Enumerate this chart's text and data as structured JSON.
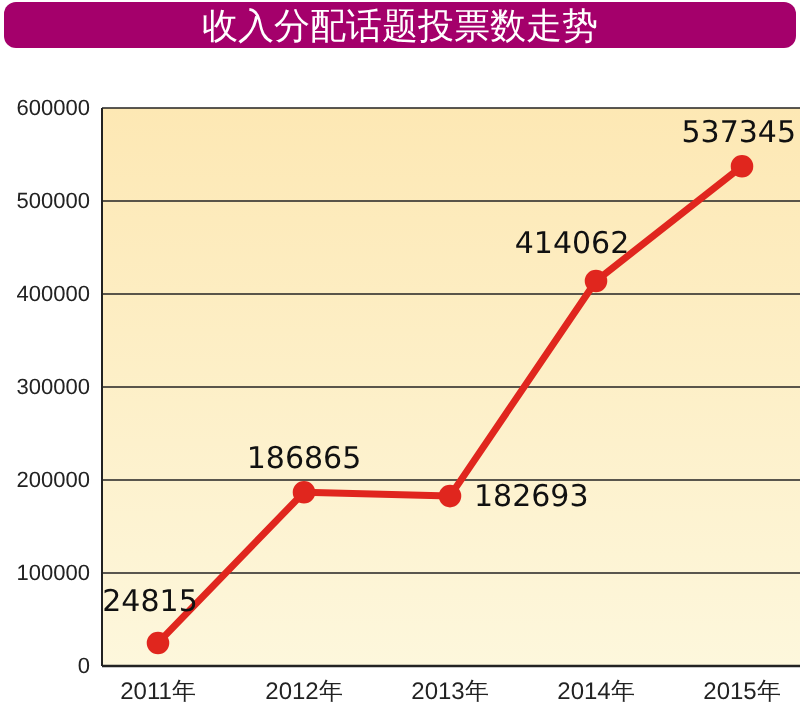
{
  "chart_data": {
    "type": "line",
    "title": "收入分配话题投票数走势",
    "categories": [
      "2011年",
      "2012年",
      "2013年",
      "2014年",
      "2015年"
    ],
    "series": [
      {
        "color": "#e0261e",
        "values": [
          24815,
          186865,
          182693,
          414062,
          537345
        ]
      }
    ],
    "ylim": [
      0,
      600000
    ],
    "yticks": [
      0,
      100000,
      200000,
      300000,
      400000,
      500000,
      600000
    ],
    "grid": "y",
    "marker": "circle",
    "data_labels": true
  }
}
